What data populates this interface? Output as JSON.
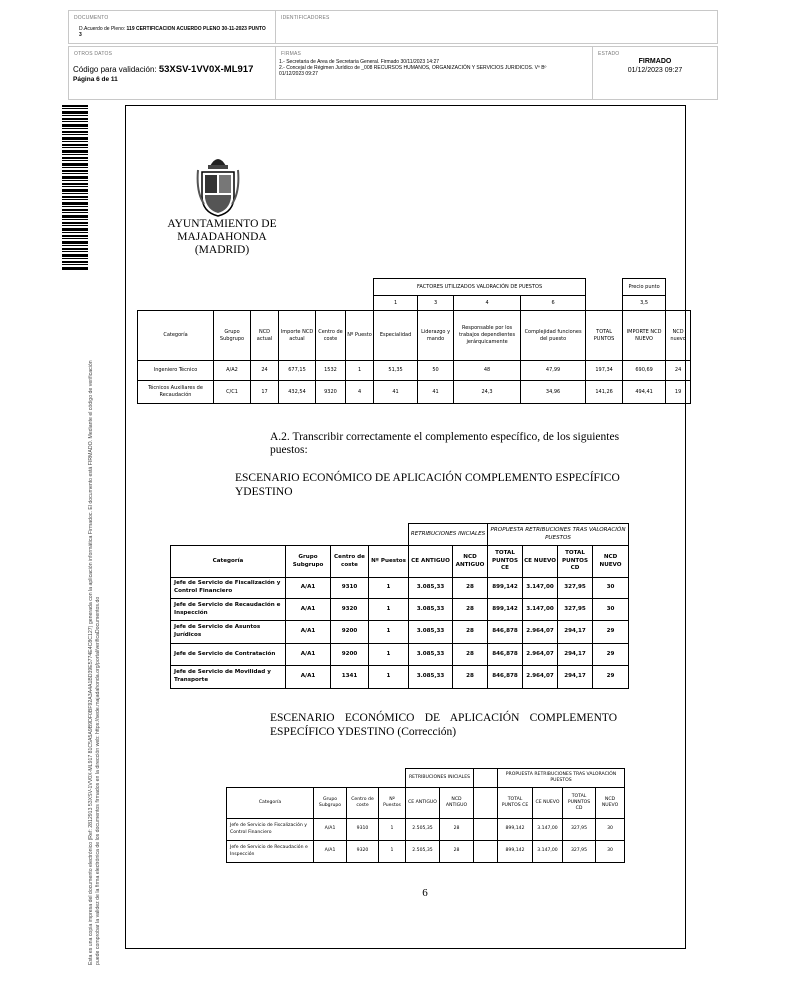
{
  "header": {
    "documento_label": "DOCUMENTO",
    "documento_prefix": "D.Acuerdo de Pleno:",
    "documento_value": "119 CERTIFICACION ACUERDO PLENO 30-11-2023 PUNTO 3",
    "identificadores_label": "IDENTIFICADORES",
    "otros_label": "OTROS DATOS",
    "codigo_label": "Código para validación:",
    "codigo_value": "53XSV-1VV0X-ML917",
    "pagina": "Página 6 de 11",
    "firmas_label": "FIRMAS",
    "firma1": "1.- Secretaria de Area de Secretaria General. Firmado 30/11/2023 14:27",
    "firma2": "2.- Concejal de Régimen Jurídico de _008 RECURSOS HUMANOS, ORGANIZACIÓN Y SERVICIOS JURIDICOS. Vº Bº",
    "firma2_date": "01/12/2023 09:27",
    "estado_label": "ESTADO",
    "estado_value": "FIRMADO",
    "estado_date": "01/12/2023 09:27"
  },
  "side_text": {
    "line1": "Esta es una copia impresa del documento electrónico (Ref: 2812913 53XSV-1VV0X-ML917 81C5A5A9B9DF0BF92A3A4A1BD39E5774E4C8C127) generada con la aplicación informática Firmadoc. El documento está FIRMADO. Mediante el código de verificación",
    "line2": "puede comprobar la validez de la firma electrónica de los documentos firmados en la dirección web: https://sede.majadahonda.org/portal/verificaDocumentos.do"
  },
  "letterhead": {
    "line1": "AYUNTAMIENTO DE",
    "line2": "MAJADAHONDA",
    "line3": "(MADRID)"
  },
  "table1": {
    "factores_title": "FACTORES UTILIZADOS VALORACIÓN DE PUESTOS",
    "factor_numbers": [
      "1",
      "3",
      "4",
      "6"
    ],
    "precio_label": "Precio punto",
    "precio_value": "3,5",
    "headers": [
      "Categoría",
      "Grupo Subgrupo",
      "NCD actual",
      "Importe NCD actual",
      "Centro de coste",
      "Nº Puesto",
      "Especialidad",
      "Liderazgo y mando",
      "Responsable por los trabajos dependientes jerárquicamente",
      "Complejidad funciones del puesto",
      "TOTAL PUNTOS",
      "IMPORTE NCD NUEVO",
      "NCD nuevo"
    ],
    "rows": [
      [
        "Ingeniero Técnico",
        "A/A2",
        "24",
        "677,15",
        "1532",
        "1",
        "51,35",
        "50",
        "48",
        "47,99",
        "197,34",
        "690,69",
        "24"
      ],
      [
        "Técnicos Auxiliares de Recaudación",
        "C/C1",
        "17",
        "432,54",
        "9320",
        "4",
        "41",
        "41",
        "24,3",
        "34,96",
        "141,26",
        "494,41",
        "19"
      ]
    ]
  },
  "para1": "A.2. Transcribir correctamente el complemento específico, de los siguientes puestos:",
  "heading1": "ESCENARIO ECONÓMICO DE APLICACIÓN COMPLEMENTO ESPECÍFICO YDESTINO",
  "table2": {
    "group1": "RETRIBUCIONES INICIALES",
    "group2": "PROPUESTA RETRIBUCIONES TRAS VALORACIÓN PUESTOS",
    "headers": [
      "Categoría",
      "Grupo Subgrupo",
      "Centro de coste",
      "Nº Puestos",
      "CE ANTIGUO",
      "NCD ANTIGUO",
      "TOTAL PUNTOS CE",
      "CE NUEVO",
      "TOTAL PUNTOS CD",
      "NCD NUEVO"
    ],
    "rows": [
      [
        "Jefe de Servicio de Fiscalización y Control Financiero",
        "A/A1",
        "9310",
        "1",
        "3.085,33",
        "28",
        "899,142",
        "3.147,00",
        "327,95",
        "30"
      ],
      [
        "Jefe de Servicio de Recaudación e Inspección",
        "A/A1",
        "9320",
        "1",
        "3.085,33",
        "28",
        "899,142",
        "3.147,00",
        "327,95",
        "30"
      ],
      [
        "Jefe de Servicio de Asuntos Jurídicos",
        "A/A1",
        "9200",
        "1",
        "3.085,33",
        "28",
        "846,878",
        "2.964,07",
        "294,17",
        "29"
      ],
      [
        "Jefe de Servicio de Contratación",
        "A/A1",
        "9200",
        "1",
        "3.085,33",
        "28",
        "846,878",
        "2.964,07",
        "294,17",
        "29"
      ],
      [
        "Jefe de Servicio de Movilidad y Transporte",
        "A/A1",
        "1341",
        "1",
        "3.085,33",
        "28",
        "846,878",
        "2.964,07",
        "294,17",
        "29"
      ]
    ]
  },
  "heading2": "ESCENARIO ECONÓMICO DE APLICACIÓN COMPLEMENTO ESPECÍFICO YDESTINO",
  "heading2_suffix": "(Corrección)",
  "table3": {
    "group1": "RETRIBUCIONES INICIALES",
    "group2": "PROPUESTA RETRIBUCIONES TRAS VALORACIÓN PUESTOS",
    "headers": [
      "Categoría",
      "Grupo Subgrupo",
      "Centro de coste",
      "Nº Puestos",
      "CE ANTIGUO",
      "NCD ANTIGUO",
      "TOTAL PUNTOS CE",
      "CE NUEVO",
      "TOTAL PUNNTOS CD",
      "NCD NUEVO"
    ],
    "rows": [
      [
        "Jefe de Servicio de Fiscalización y Control Financiero",
        "A/A1",
        "9310",
        "1",
        "2.505,35",
        "28",
        "899,142",
        "3.147,00",
        "327,95",
        "30"
      ],
      [
        "Jefe de Servicio de Recaudación e Inspección",
        "A/A1",
        "9320",
        "1",
        "2.505,35",
        "28",
        "899,142",
        "3.147,00",
        "327,95",
        "30"
      ]
    ]
  },
  "page_number": "6"
}
